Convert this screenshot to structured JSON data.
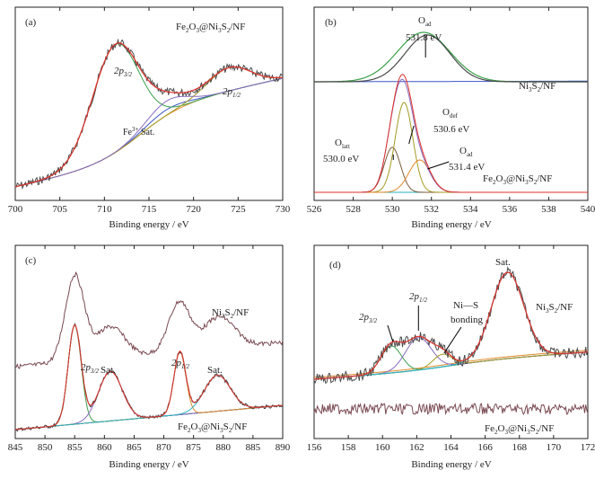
{
  "colors": {
    "raw": "#4a4a4a",
    "raw_alt": "#7a4a52",
    "fit": "#e0312a",
    "green": "#3aa04a",
    "purple": "#8a6cc0",
    "orange": "#e08a2a",
    "cyan": "#2bb3c0",
    "blue": "#3a55c8",
    "olive": "#a39a22",
    "brown": "#7a5a3a",
    "axis": "#222222"
  },
  "chart_data": [
    {
      "type": "line",
      "panel": "(a)",
      "xlabel": "Binding energy / eV",
      "ylabel": "",
      "xlim": [
        700,
        730
      ],
      "xticks": [
        "700",
        "705",
        "710",
        "715",
        "720",
        "725",
        "730"
      ],
      "grid": false,
      "sample": "Fe₂O₃@Ni₃S₂/NF",
      "sample_parts": [
        "Fe",
        "2",
        "O",
        "3",
        "@Ni",
        "3",
        "S",
        "2",
        "/NF"
      ],
      "peaks": [
        {
          "name": "2p3/2",
          "label_base": "2p",
          "label_sub": "3/2",
          "center": 711.2
        },
        {
          "name": "2p1/2",
          "label_base": "2p",
          "label_sub": "1/2",
          "center": 724.3
        },
        {
          "name": "Fe3+ Sat.",
          "label_base": "Fe",
          "label_sup": "3+",
          "label_tail": " Sat.",
          "center": 717.0
        }
      ]
    },
    {
      "type": "line",
      "panel": "(b)",
      "xlabel": "Binding energy / eV",
      "ylabel": "",
      "xlim": [
        526,
        540
      ],
      "xticks": [
        "526",
        "528",
        "530",
        "532",
        "534",
        "536",
        "538",
        "540"
      ],
      "grid": false,
      "series": [
        {
          "sample": "Ni₃S₂/NF",
          "sample_parts": [
            "Ni",
            "3",
            "S",
            "2",
            "/NF"
          ],
          "peaks": [
            {
              "label_base": "O",
              "label_sub": "ad",
              "energy": "531.8 eV",
              "center": 531.8
            }
          ]
        },
        {
          "sample": "Fe₂O₃@Ni₃S₂/NF",
          "sample_parts": [
            "Fe",
            "2",
            "O",
            "3",
            "@Ni",
            "3",
            "S",
            "2",
            "/NF"
          ],
          "peaks": [
            {
              "label_base": "O",
              "label_sub": "latt",
              "energy": "530.0 eV",
              "center": 530.0
            },
            {
              "label_base": "O",
              "label_sub": "def",
              "energy": "530.6 eV",
              "center": 530.6
            },
            {
              "label_base": "O",
              "label_sub": "ad",
              "energy": "531.4 eV",
              "center": 531.4
            }
          ]
        }
      ]
    },
    {
      "type": "line",
      "panel": "(c)",
      "xlabel": "Binding energy / eV",
      "ylabel": "",
      "xlim": [
        845,
        890
      ],
      "xticks": [
        "845",
        "850",
        "855",
        "860",
        "865",
        "870",
        "875",
        "880",
        "885",
        "890"
      ],
      "grid": false,
      "series": [
        {
          "sample": "Ni₃S₂/NF",
          "sample_parts": [
            "Ni",
            "3",
            "S",
            "2",
            "/NF"
          ]
        },
        {
          "sample": "Fe₂O₃@Ni₃S₂/NF",
          "sample_parts": [
            "Fe",
            "2",
            "O",
            "3",
            "@Ni",
            "3",
            "S",
            "2",
            "/NF"
          ],
          "peaks": [
            {
              "label_base": "2p",
              "label_sub": "3/2",
              "center": 855.0
            },
            {
              "label_base": "Sat.",
              "center": 861.0
            },
            {
              "label_base": "2p",
              "label_sub": "1/2",
              "center": 872.8
            },
            {
              "label_base": "Sat.",
              "center": 879.0
            }
          ]
        }
      ]
    },
    {
      "type": "line",
      "panel": "(d)",
      "xlabel": "Binding energy / eV",
      "ylabel": "",
      "xlim": [
        156,
        172
      ],
      "xticks": [
        "156",
        "158",
        "160",
        "162",
        "164",
        "166",
        "168",
        "170",
        "172"
      ],
      "grid": false,
      "series": [
        {
          "sample": "Ni₃S₂/NF",
          "sample_parts": [
            "Ni",
            "3",
            "S",
            "2",
            "/NF"
          ],
          "peaks": [
            {
              "label_base": "2p",
              "label_sub": "3/2",
              "center": 160.5
            },
            {
              "label_base": "2p",
              "label_sub": "1/2",
              "center": 162.1
            },
            {
              "label_base": "Ni—S",
              "label_line2": "bonding",
              "center": 163.5
            },
            {
              "label_base": "Sat.",
              "center": 167.3
            }
          ]
        },
        {
          "sample": "Fe₂O₃@Ni₃S₂/NF",
          "sample_parts": [
            "Fe",
            "2",
            "O",
            "3",
            "@Ni",
            "3",
            "S",
            "2",
            "/NF"
          ]
        }
      ]
    }
  ]
}
